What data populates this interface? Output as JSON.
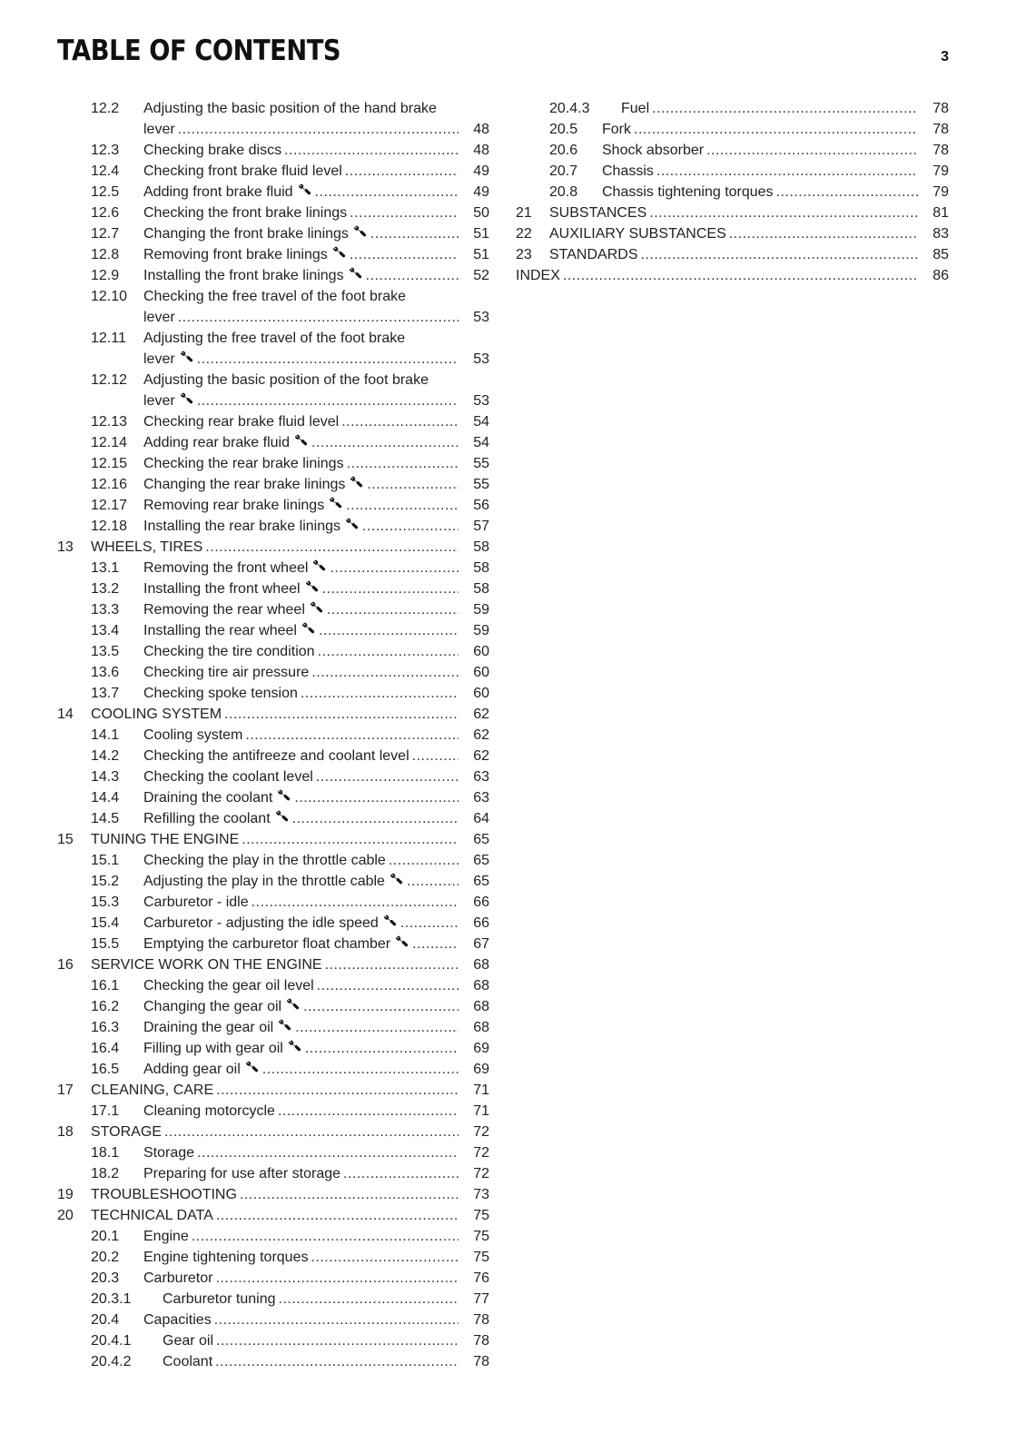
{
  "header": {
    "title": "TABLE OF CONTENTS",
    "page_number": "3"
  },
  "icons": {
    "wrench": "wrench-icon"
  },
  "left_column": [
    {
      "num": "12.2",
      "title": "Adjusting the basic position of the hand brake",
      "cont": "lever",
      "page": "48",
      "level": 2
    },
    {
      "num": "12.3",
      "title": "Checking brake discs",
      "page": "48",
      "level": 2
    },
    {
      "num": "12.4",
      "title": "Checking front brake fluid level",
      "page": "49",
      "level": 2
    },
    {
      "num": "12.5",
      "title": "Adding front brake fluid",
      "page": "49",
      "level": 2,
      "wrench": true
    },
    {
      "num": "12.6",
      "title": "Checking the front brake linings",
      "page": "50",
      "level": 2
    },
    {
      "num": "12.7",
      "title": "Changing the front brake linings",
      "page": "51",
      "level": 2,
      "wrench": true
    },
    {
      "num": "12.8",
      "title": "Removing front brake linings",
      "page": "51",
      "level": 2,
      "wrench": true
    },
    {
      "num": "12.9",
      "title": "Installing the front brake linings",
      "page": "52",
      "level": 2,
      "wrench": true
    },
    {
      "num": "12.10",
      "title": "Checking the free travel of the foot brake",
      "cont": "lever",
      "page": "53",
      "level": 2
    },
    {
      "num": "12.11",
      "title": "Adjusting the free travel of the foot brake",
      "cont": "lever",
      "page": "53",
      "level": 2,
      "wrench": true
    },
    {
      "num": "12.12",
      "title": "Adjusting the basic position of the foot brake",
      "cont": "lever",
      "page": "53",
      "level": 2,
      "wrench": true
    },
    {
      "num": "12.13",
      "title": "Checking rear brake fluid level",
      "page": "54",
      "level": 2
    },
    {
      "num": "12.14",
      "title": "Adding rear brake fluid",
      "page": "54",
      "level": 2,
      "wrench": true
    },
    {
      "num": "12.15",
      "title": "Checking the rear brake linings",
      "page": "55",
      "level": 2
    },
    {
      "num": "12.16",
      "title": "Changing the rear brake linings",
      "page": "55",
      "level": 2,
      "wrench": true
    },
    {
      "num": "12.17",
      "title": "Removing rear brake linings",
      "page": "56",
      "level": 2,
      "wrench": true
    },
    {
      "num": "12.18",
      "title": "Installing the rear brake linings",
      "page": "57",
      "level": 2,
      "wrench": true
    },
    {
      "num": "13",
      "title": "WHEELS, TIRES",
      "page": "58",
      "level": 1
    },
    {
      "num": "13.1",
      "title": "Removing the front wheel",
      "page": "58",
      "level": 2,
      "wrench": true
    },
    {
      "num": "13.2",
      "title": "Installing the front wheel",
      "page": "58",
      "level": 2,
      "wrench": true
    },
    {
      "num": "13.3",
      "title": "Removing the rear wheel",
      "page": "59",
      "level": 2,
      "wrench": true
    },
    {
      "num": "13.4",
      "title": "Installing the rear wheel",
      "page": "59",
      "level": 2,
      "wrench": true
    },
    {
      "num": "13.5",
      "title": "Checking the tire condition",
      "page": "60",
      "level": 2
    },
    {
      "num": "13.6",
      "title": "Checking tire air pressure",
      "page": "60",
      "level": 2
    },
    {
      "num": "13.7",
      "title": "Checking spoke tension",
      "page": "60",
      "level": 2
    },
    {
      "num": "14",
      "title": "COOLING SYSTEM",
      "page": "62",
      "level": 1
    },
    {
      "num": "14.1",
      "title": "Cooling system",
      "page": "62",
      "level": 2
    },
    {
      "num": "14.2",
      "title": "Checking the antifreeze and coolant level",
      "page": "62",
      "level": 2
    },
    {
      "num": "14.3",
      "title": "Checking the coolant level",
      "page": "63",
      "level": 2
    },
    {
      "num": "14.4",
      "title": "Draining the coolant",
      "page": "63",
      "level": 2,
      "wrench": true
    },
    {
      "num": "14.5",
      "title": "Refilling the coolant",
      "page": "64",
      "level": 2,
      "wrench": true
    },
    {
      "num": "15",
      "title": "TUNING THE ENGINE",
      "page": "65",
      "level": 1
    },
    {
      "num": "15.1",
      "title": "Checking the play in the throttle cable",
      "page": "65",
      "level": 2
    },
    {
      "num": "15.2",
      "title": "Adjusting the play in the throttle cable",
      "page": "65",
      "level": 2,
      "wrench": true
    },
    {
      "num": "15.3",
      "title": "Carburetor - idle",
      "page": "66",
      "level": 2
    },
    {
      "num": "15.4",
      "title": "Carburetor - adjusting the idle speed",
      "page": "66",
      "level": 2,
      "wrench": true
    },
    {
      "num": "15.5",
      "title": "Emptying the carburetor float chamber",
      "page": "67",
      "level": 2,
      "wrench": true
    },
    {
      "num": "16",
      "title": "SERVICE WORK ON THE ENGINE",
      "page": "68",
      "level": 1
    },
    {
      "num": "16.1",
      "title": "Checking the gear oil level",
      "page": "68",
      "level": 2
    },
    {
      "num": "16.2",
      "title": "Changing the gear oil",
      "page": "68",
      "level": 2,
      "wrench": true
    },
    {
      "num": "16.3",
      "title": "Draining the gear oil",
      "page": "68",
      "level": 2,
      "wrench": true
    },
    {
      "num": "16.4",
      "title": "Filling up with gear oil",
      "page": "69",
      "level": 2,
      "wrench": true
    },
    {
      "num": "16.5",
      "title": "Adding gear oil",
      "page": "69",
      "level": 2,
      "wrench": true
    },
    {
      "num": "17",
      "title": "CLEANING, CARE",
      "page": "71",
      "level": 1
    },
    {
      "num": "17.1",
      "title": "Cleaning motorcycle",
      "page": "71",
      "level": 2
    },
    {
      "num": "18",
      "title": "STORAGE",
      "page": "72",
      "level": 1
    },
    {
      "num": "18.1",
      "title": "Storage",
      "page": "72",
      "level": 2
    },
    {
      "num": "18.2",
      "title": "Preparing for use after storage",
      "page": "72",
      "level": 2
    },
    {
      "num": "19",
      "title": "TROUBLESHOOTING",
      "page": "73",
      "level": 1
    },
    {
      "num": "20",
      "title": "TECHNICAL DATA",
      "page": "75",
      "level": 1
    },
    {
      "num": "20.1",
      "title": "Engine",
      "page": "75",
      "level": 2
    },
    {
      "num": "20.2",
      "title": "Engine tightening torques",
      "page": "75",
      "level": 2
    },
    {
      "num": "20.3",
      "title": "Carburetor",
      "page": "76",
      "level": 2
    },
    {
      "num": "20.3.1",
      "title": "Carburetor tuning",
      "page": "77",
      "level": 3
    },
    {
      "num": "20.4",
      "title": "Capacities",
      "page": "78",
      "level": 2
    },
    {
      "num": "20.4.1",
      "title": "Gear oil",
      "page": "78",
      "level": 3
    },
    {
      "num": "20.4.2",
      "title": "Coolant",
      "page": "78",
      "level": 3
    }
  ],
  "right_column": [
    {
      "num": "20.4.3",
      "title": "Fuel",
      "page": "78",
      "level": 3
    },
    {
      "num": "20.5",
      "title": "Fork",
      "page": "78",
      "level": 2
    },
    {
      "num": "20.6",
      "title": "Shock absorber",
      "page": "78",
      "level": 2
    },
    {
      "num": "20.7",
      "title": "Chassis",
      "page": "79",
      "level": 2
    },
    {
      "num": "20.8",
      "title": "Chassis tightening torques",
      "page": "79",
      "level": 2
    },
    {
      "num": "21",
      "title": "SUBSTANCES",
      "page": "81",
      "level": 1
    },
    {
      "num": "22",
      "title": "AUXILIARY SUBSTANCES",
      "page": "83",
      "level": 1
    },
    {
      "num": "23",
      "title": "STANDARDS",
      "page": "85",
      "level": 1
    },
    {
      "num": "",
      "title": "INDEX",
      "page": "86",
      "level": 0
    }
  ]
}
